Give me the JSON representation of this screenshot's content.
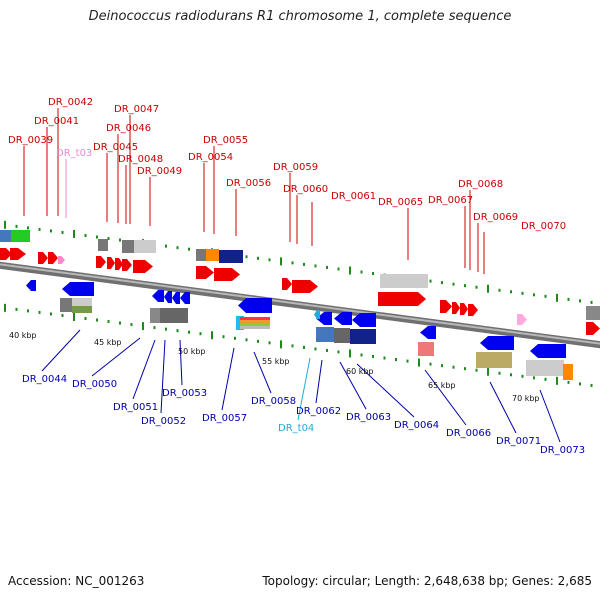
{
  "title": "Deinococcus radiodurans R1 chromosome 1, complete sequence",
  "footer": {
    "accession": "Accession: NC_001263",
    "summary": "Topology: circular; Length: 2,648,638 bp; Genes: 2,685"
  },
  "colors": {
    "forward_label": "#cc0000",
    "reverse_label": "#0000aa",
    "trna_forward_label": "#ee88cc",
    "trna_reverse_label": "#22aadd",
    "backbone": "#8a8a8a",
    "tick": "#1e8a1e"
  },
  "scale_labels": [
    "40 kbp",
    "45 kbp",
    "50 kbp",
    "55 kbp",
    "60 kbp",
    "65 kbp",
    "70 kbp"
  ],
  "forward_labels": [
    "DR_0039",
    "DR_0041",
    "DR_0042",
    "DR_t03",
    "DR_0045",
    "DR_0046",
    "DR_0047",
    "DR_0048",
    "DR_0049",
    "DR_0054",
    "DR_0055",
    "DR_0056",
    "DR_0059",
    "DR_0060",
    "DR_0061",
    "DR_0065",
    "DR_0067",
    "DR_0068",
    "DR_0069",
    "DR_0070"
  ],
  "reverse_labels": [
    "DR_0044",
    "DR_0050",
    "DR_0051",
    "DR_0052",
    "DR_0053",
    "DR_0057",
    "DR_0058",
    "DR_t04",
    "DR_0062",
    "DR_0063",
    "DR_0064",
    "DR_0066",
    "DR_0071",
    "DR_0073"
  ]
}
